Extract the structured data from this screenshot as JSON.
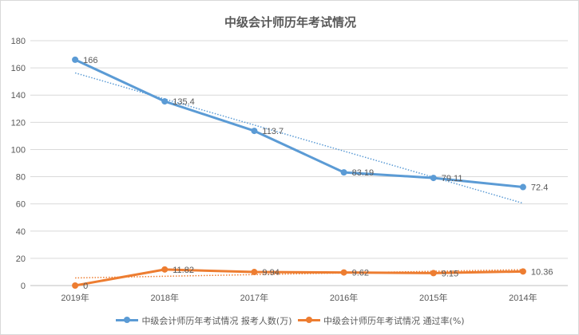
{
  "chart_data": {
    "type": "line",
    "title": "中级会计师历年考试情况",
    "categories": [
      "2019年",
      "2018年",
      "2017年",
      "2016年",
      "2015年",
      "2014年"
    ],
    "ylim": [
      0,
      180
    ],
    "yticks": [
      0,
      20,
      40,
      60,
      80,
      100,
      120,
      140,
      160,
      180
    ],
    "grid": true,
    "legend_position": "bottom",
    "series": [
      {
        "name": "中级会计师历年考试情况 报考人数(万)",
        "values": [
          166,
          135.4,
          113.7,
          83.19,
          79.11,
          72.4
        ],
        "labels": [
          "166",
          "135.4",
          "113.7",
          "83.19",
          "79.11",
          "72.4"
        ],
        "color": "#5b9bd5",
        "trend": [
          156.3,
          60.5
        ]
      },
      {
        "name": "中级会计师历年考试情况 通过率(%)",
        "values": [
          0,
          11.82,
          9.94,
          9.62,
          9.15,
          10.36
        ],
        "labels": [
          "0",
          "11.82",
          "9.94",
          "9.62",
          "9.15",
          "10.36"
        ],
        "color": "#ed7d31",
        "trend": [
          5.6,
          11.7
        ]
      }
    ]
  }
}
